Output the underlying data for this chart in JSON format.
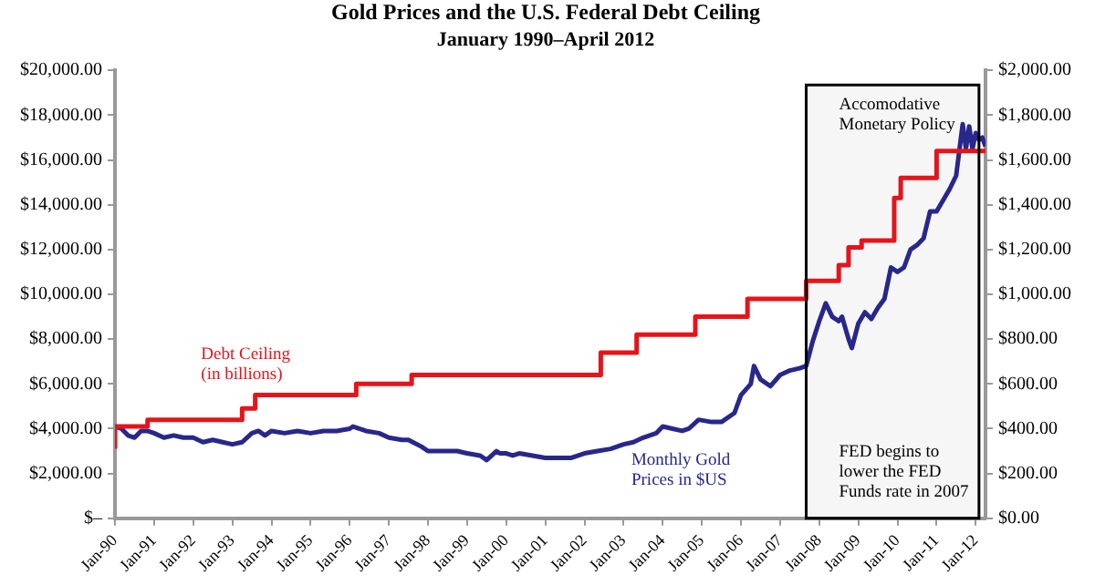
{
  "chart_data": {
    "type": "line",
    "title": "Gold Prices and the U.S. Federal Debt Ceiling",
    "subtitle": "January 1990–April 2012",
    "xlim": [
      "1990-01",
      "2012-04"
    ],
    "xticks": [
      {
        "value": "1990-01",
        "label": "Jan-90"
      },
      {
        "value": "1991-01",
        "label": "Jan-91"
      },
      {
        "value": "1992-01",
        "label": "Jan-92"
      },
      {
        "value": "1993-01",
        "label": "Jan-93"
      },
      {
        "value": "1994-01",
        "label": "Jan-94"
      },
      {
        "value": "1995-01",
        "label": "Jan-95"
      },
      {
        "value": "1996-01",
        "label": "Jan-96"
      },
      {
        "value": "1997-01",
        "label": "Jan-97"
      },
      {
        "value": "1998-01",
        "label": "Jan-98"
      },
      {
        "value": "1999-01",
        "label": "Jan-99"
      },
      {
        "value": "2000-01",
        "label": "Jan-00"
      },
      {
        "value": "2001-01",
        "label": "Jan-01"
      },
      {
        "value": "2002-01",
        "label": "Jan-02"
      },
      {
        "value": "2003-01",
        "label": "Jan-03"
      },
      {
        "value": "2004-01",
        "label": "Jan-04"
      },
      {
        "value": "2005-01",
        "label": "Jan-05"
      },
      {
        "value": "2006-01",
        "label": "Jan-06"
      },
      {
        "value": "2007-01",
        "label": "Jan-07"
      },
      {
        "value": "2008-01",
        "label": "Jan-08"
      },
      {
        "value": "2009-01",
        "label": "Jan-09"
      },
      {
        "value": "2010-01",
        "label": "Jan-10"
      },
      {
        "value": "2011-01",
        "label": "Jan-11"
      },
      {
        "value": "2012-01",
        "label": "Jan-12"
      }
    ],
    "ylim": [
      0,
      20000
    ],
    "yticks": [
      {
        "value": 0,
        "label": "$–"
      },
      {
        "value": 2000,
        "label": "$2,000.00"
      },
      {
        "value": 4000,
        "label": "$4,000.00"
      },
      {
        "value": 6000,
        "label": "$6,000.00"
      },
      {
        "value": 8000,
        "label": "$8,000.00"
      },
      {
        "value": 10000,
        "label": "$10,000.00"
      },
      {
        "value": 12000,
        "label": "$12,000.00"
      },
      {
        "value": 14000,
        "label": "$14,000.00"
      },
      {
        "value": 16000,
        "label": "$16,000.00"
      },
      {
        "value": 18000,
        "label": "$18,000.00"
      },
      {
        "value": 20000,
        "label": "$20,000.00"
      }
    ],
    "y2lim": [
      0,
      2000
    ],
    "y2ticks": [
      {
        "value": 0,
        "label": "$0.00"
      },
      {
        "value": 200,
        "label": "$200.00"
      },
      {
        "value": 400,
        "label": "$400.00"
      },
      {
        "value": 600,
        "label": "$600.00"
      },
      {
        "value": 800,
        "label": "$800.00"
      },
      {
        "value": 1000,
        "label": "$1,000.00"
      },
      {
        "value": 1200,
        "label": "$1,200.00"
      },
      {
        "value": 1400,
        "label": "$1,400.00"
      },
      {
        "value": 1600,
        "label": "$1,600.00"
      },
      {
        "value": 1800,
        "label": "$1,800.00"
      },
      {
        "value": 2000,
        "label": "$2,000.00"
      }
    ],
    "grid": false,
    "legend": false,
    "marker": "none",
    "line_style": "solid",
    "series": [
      {
        "name": "Debt Ceiling\n(in billions)",
        "type": "step",
        "color": "#e5141b",
        "x": [
          "1990-01",
          "1990-11",
          "1993-04",
          "1993-08",
          "1996-03",
          "1997-08",
          "2002-06",
          "2003-05",
          "2004-11",
          "2006-03",
          "2007-09",
          "2008-07",
          "2008-10",
          "2009-02",
          "2009-12",
          "2010-02",
          "2011-01",
          "2012-01",
          "2012-04"
        ],
        "values": [
          3100,
          4100,
          4400,
          4900,
          5500,
          6000,
          6400,
          7400,
          8200,
          9000,
          9800,
          10600,
          11300,
          12100,
          12400,
          14300,
          15200,
          16400,
          16400
        ]
      },
      {
        "name": "Monthly Gold\nPrices in $US",
        "axis": "y2",
        "color": "#27278c",
        "x": [
          "1990-01",
          "1990-03",
          "1990-05",
          "1990-07",
          "1990-09",
          "1990-11",
          "1991-01",
          "1991-04",
          "1991-07",
          "1991-10",
          "1992-01",
          "1992-04",
          "1992-07",
          "1992-10",
          "1993-01",
          "1993-04",
          "1993-07",
          "1993-09",
          "1993-11",
          "1994-01",
          "1994-05",
          "1994-09",
          "1995-01",
          "1995-05",
          "1995-09",
          "1996-01",
          "1996-02",
          "1996-06",
          "1996-10",
          "1997-01",
          "1997-05",
          "1997-07",
          "1997-11",
          "1998-01",
          "1998-04",
          "1998-07",
          "1998-10",
          "1999-01",
          "1999-05",
          "1999-07",
          "1999-10",
          "1999-11",
          "2000-01",
          "2000-03",
          "2000-05",
          "2000-09",
          "2001-01",
          "2001-05",
          "2001-09",
          "2002-01",
          "2002-05",
          "2002-09",
          "2003-01",
          "2003-04",
          "2003-07",
          "2003-11",
          "2004-01",
          "2004-04",
          "2004-07",
          "2004-09",
          "2004-12",
          "2005-04",
          "2005-07",
          "2005-11",
          "2006-01",
          "2006-04",
          "2006-05",
          "2006-07",
          "2006-10",
          "2007-01",
          "2007-04",
          "2007-07",
          "2007-09",
          "2007-11",
          "2008-01",
          "2008-03",
          "2008-05",
          "2008-07",
          "2008-08",
          "2008-10",
          "2008-11",
          "2009-01",
          "2009-03",
          "2009-05",
          "2009-07",
          "2009-09",
          "2009-11",
          "2010-01",
          "2010-03",
          "2010-05",
          "2010-07",
          "2010-09",
          "2010-11",
          "2011-01",
          "2011-03",
          "2011-05",
          "2011-07",
          "2011-09",
          "2011-10",
          "2011-11",
          "2011-12",
          "2012-01",
          "2012-02",
          "2012-03",
          "2012-04"
        ],
        "values": [
          410,
          400,
          370,
          360,
          390,
          390,
          380,
          360,
          370,
          360,
          360,
          340,
          350,
          340,
          330,
          340,
          380,
          390,
          370,
          390,
          380,
          390,
          380,
          390,
          390,
          400,
          410,
          390,
          380,
          360,
          350,
          350,
          320,
          300,
          300,
          300,
          300,
          290,
          280,
          260,
          300,
          290,
          290,
          280,
          290,
          280,
          270,
          270,
          270,
          290,
          300,
          310,
          330,
          340,
          360,
          380,
          410,
          400,
          390,
          400,
          440,
          430,
          430,
          470,
          550,
          600,
          680,
          620,
          590,
          640,
          660,
          670,
          680,
          790,
          880,
          960,
          900,
          880,
          900,
          800,
          760,
          870,
          920,
          890,
          940,
          980,
          1120,
          1100,
          1120,
          1200,
          1220,
          1250,
          1370,
          1370,
          1420,
          1470,
          1530,
          1760,
          1650,
          1750,
          1650,
          1720,
          1690,
          1700,
          1660
        ]
      }
    ],
    "bands": [
      {
        "axis": "x",
        "from": "2007-09",
        "to": "2012-02",
        "label": "Accomodative\nMonetary Policy",
        "color": "#000000"
      }
    ],
    "annotations": [
      "FED begins to\nlower the FED\nFunds rate in 2007"
    ]
  }
}
